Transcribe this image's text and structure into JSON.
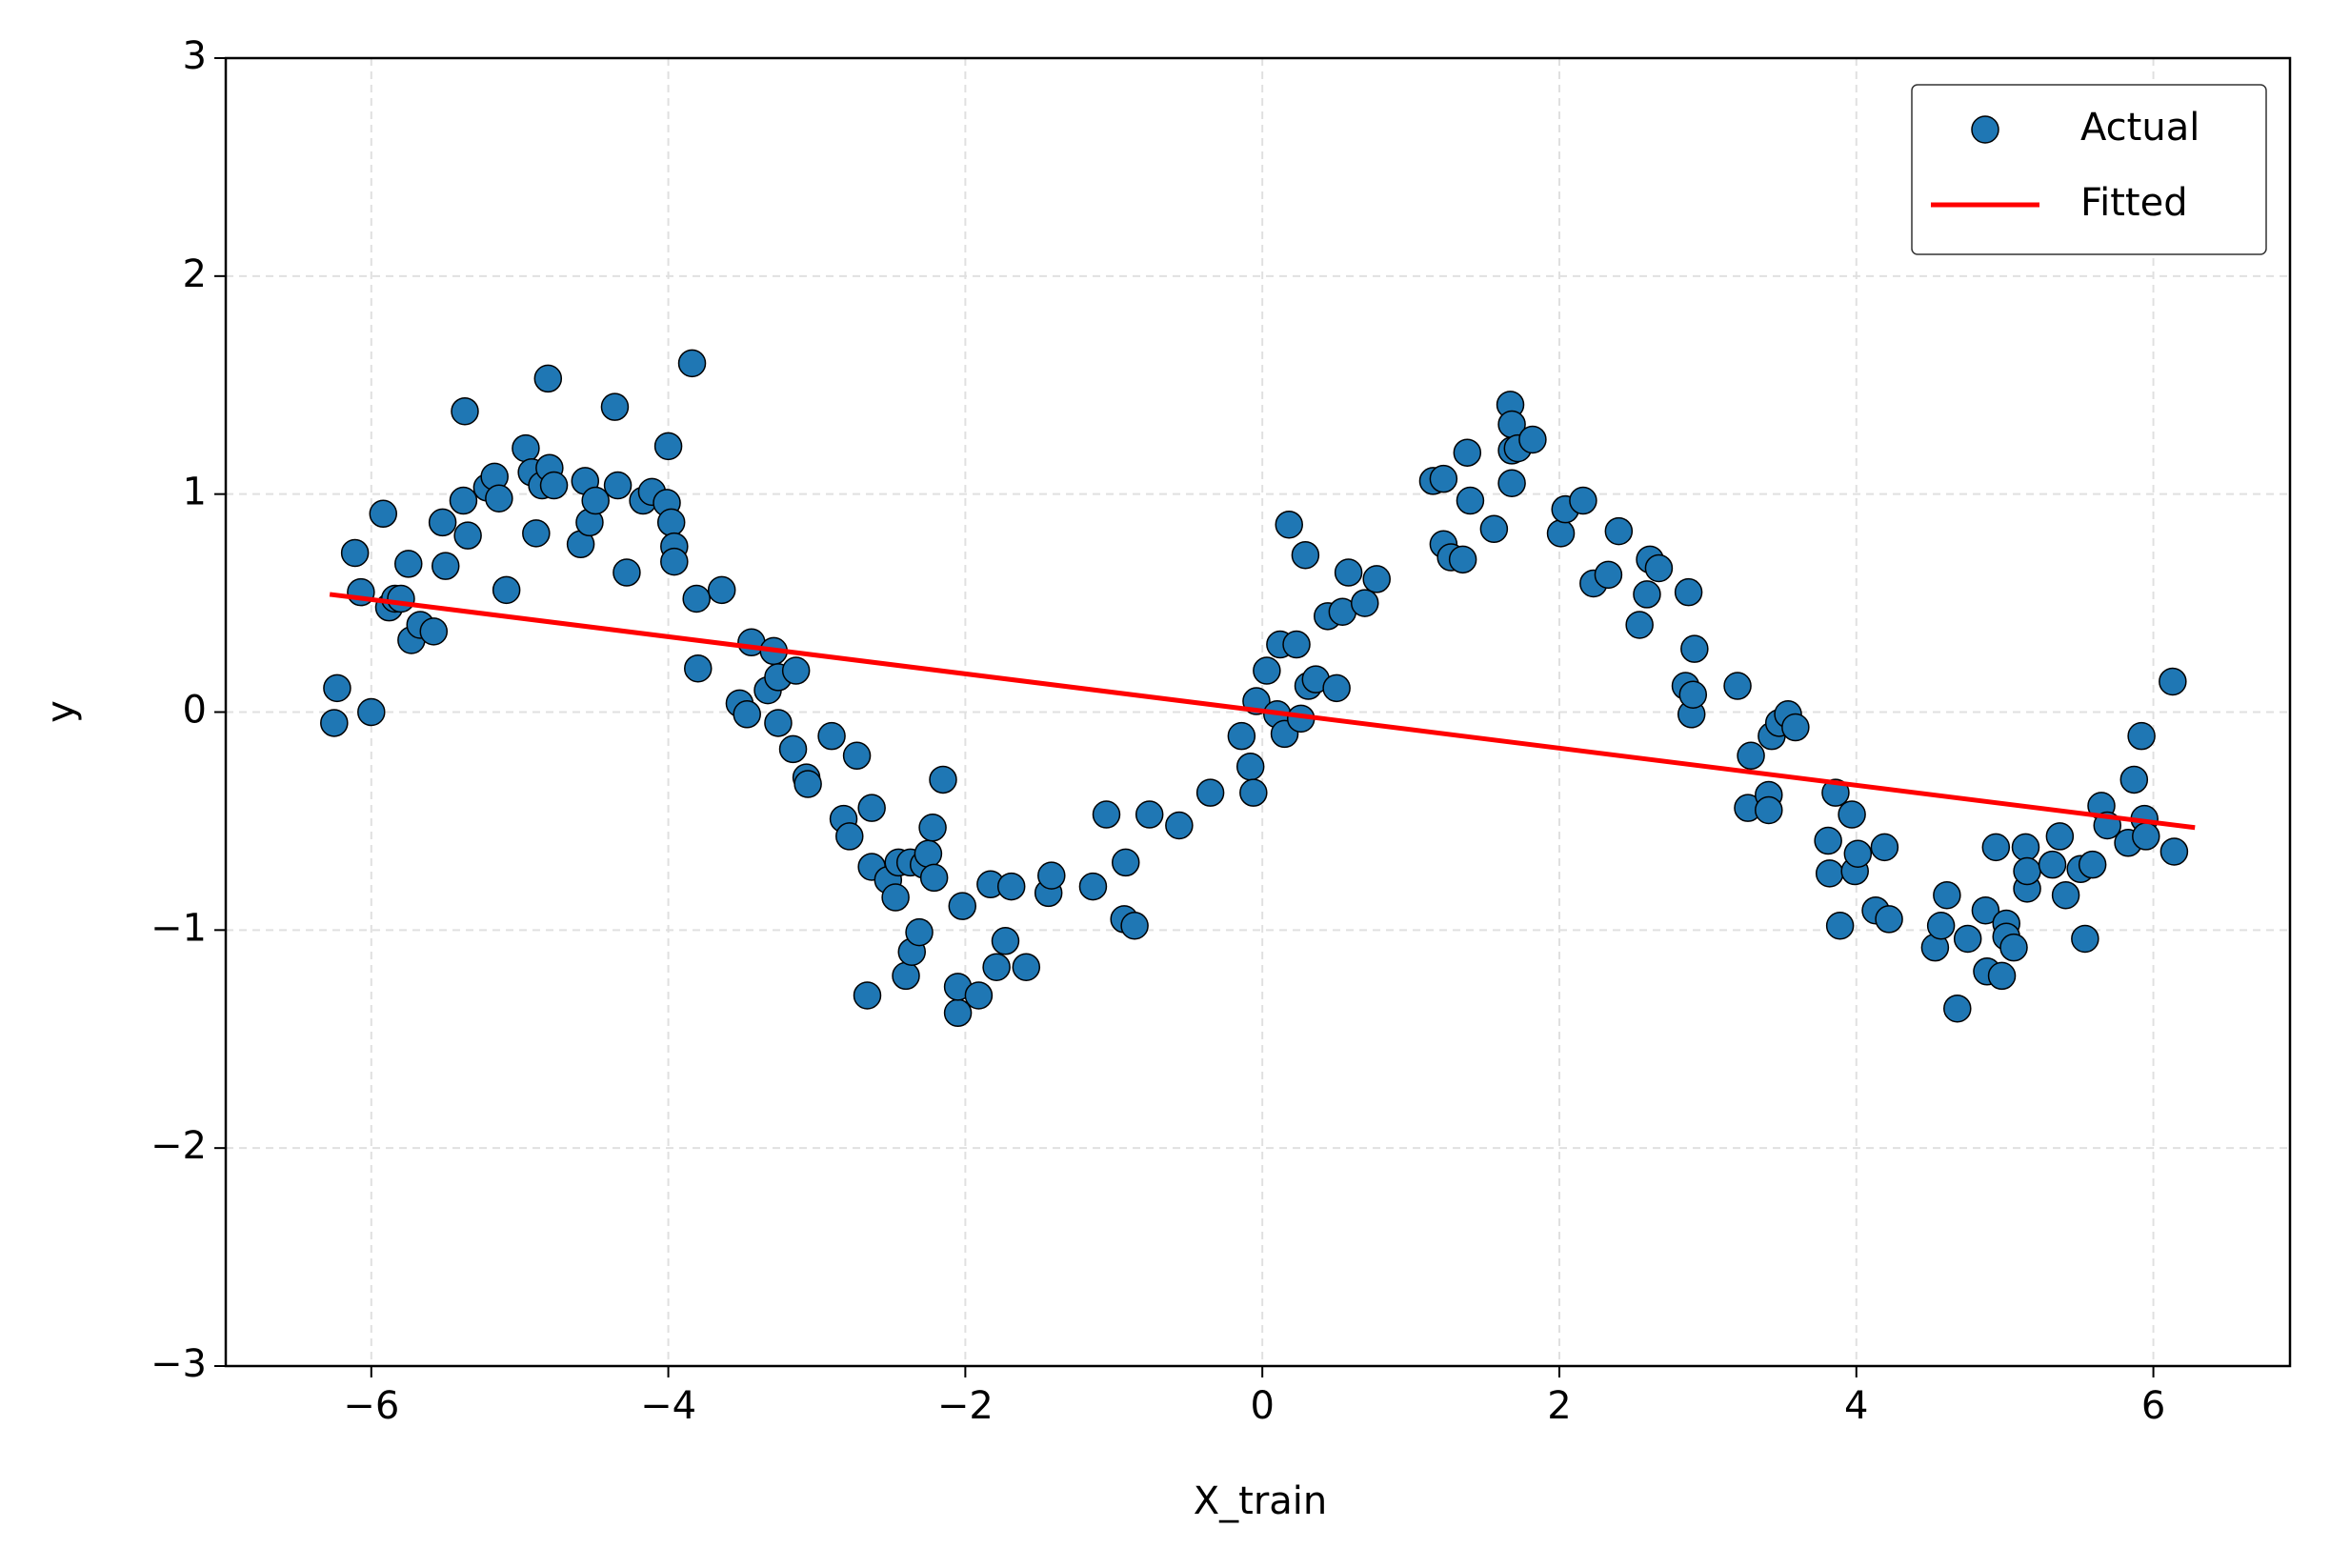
{
  "chart_data": {
    "type": "scatter",
    "xlabel": "X_train",
    "ylabel": "y",
    "xlim": [
      -6.98,
      6.92
    ],
    "ylim": [
      -3,
      3
    ],
    "xticks": [
      {
        "value": -6,
        "label": "−6"
      },
      {
        "value": -4,
        "label": "−4"
      },
      {
        "value": -2,
        "label": "−2"
      },
      0,
      2,
      4,
      6
    ],
    "yticks": [
      {
        "value": -3,
        "label": "−3"
      },
      {
        "value": -2,
        "label": "−2"
      },
      {
        "value": -1,
        "label": "−1"
      },
      0,
      1,
      2,
      3
    ],
    "grid": true,
    "legend": "upper right",
    "series": [
      {
        "name": "Actual",
        "kind": "scatter",
        "color": "#1f77b4",
        "x": [
          -6.25,
          -6.23,
          -6.11,
          -6.07,
          -6.0,
          -5.92,
          -5.88,
          -5.84,
          -5.8,
          -5.75,
          -5.73,
          -5.67,
          -5.58,
          -5.52,
          -5.5,
          -5.37,
          -5.38,
          -5.35,
          -5.22,
          -5.17,
          -5.14,
          -5.09,
          -4.96,
          -4.92,
          -4.89,
          -4.85,
          -4.81,
          -4.8,
          -4.77,
          -4.59,
          -4.56,
          -4.53,
          -4.49,
          -4.36,
          -4.34,
          -4.28,
          -4.17,
          -4.11,
          -4.0,
          -4.01,
          -3.98,
          -3.96,
          -3.96,
          -3.84,
          -3.81,
          -3.8,
          -3.64,
          -3.52,
          -3.47,
          -3.44,
          -3.33,
          -3.29,
          -3.26,
          -3.26,
          -3.16,
          -3.14,
          -3.07,
          -3.06,
          -2.9,
          -2.82,
          -2.78,
          -2.73,
          -2.66,
          -2.63,
          -2.63,
          -2.52,
          -2.47,
          -2.45,
          -2.4,
          -2.37,
          -2.36,
          -2.31,
          -2.28,
          -2.25,
          -2.22,
          -2.21,
          -2.15,
          -2.05,
          -2.05,
          -2.02,
          -1.91,
          -1.83,
          -1.79,
          -1.73,
          -1.69,
          -1.59,
          -1.44,
          -1.42,
          -1.14,
          -1.05,
          -0.92,
          -0.93,
          -0.86,
          -0.76,
          -0.56,
          -0.35,
          -0.14,
          -0.08,
          -0.06,
          -0.04,
          0.03,
          0.1,
          0.12,
          0.15,
          0.18,
          0.23,
          0.26,
          0.29,
          0.31,
          0.36,
          0.44,
          0.5,
          0.54,
          0.58,
          0.69,
          0.77,
          1.15,
          1.22,
          1.22,
          1.27,
          1.35,
          1.38,
          1.4,
          1.56,
          1.67,
          1.68,
          1.68,
          1.68,
          1.72,
          1.82,
          2.01,
          2.04,
          2.16,
          2.23,
          2.33,
          2.4,
          2.54,
          2.59,
          2.61,
          2.67,
          2.85,
          2.87,
          2.89,
          2.9,
          2.91,
          3.2,
          3.27,
          3.29,
          3.41,
          3.41,
          3.43,
          3.48,
          3.54,
          3.59,
          3.81,
          3.82,
          3.86,
          3.89,
          3.97,
          3.99,
          4.01,
          4.13,
          4.19,
          4.22,
          4.53,
          4.57,
          4.61,
          4.68,
          4.75,
          4.87,
          4.88,
          4.94,
          4.98,
          5.01,
          5.01,
          5.06,
          5.14,
          5.15,
          5.15,
          5.32,
          5.37,
          5.41,
          5.51,
          5.54,
          5.59,
          5.65,
          5.69,
          5.83,
          5.87,
          5.92,
          5.94,
          5.95,
          6.13,
          6.14
        ],
        "values": [
          -0.05,
          0.11,
          0.73,
          0.55,
          0.0,
          0.91,
          0.48,
          0.52,
          0.52,
          0.68,
          0.33,
          0.4,
          0.37,
          0.87,
          0.67,
          1.38,
          0.97,
          0.81,
          1.03,
          1.08,
          0.98,
          0.56,
          1.21,
          1.1,
          0.82,
          1.04,
          1.53,
          1.12,
          1.04,
          0.77,
          1.06,
          0.87,
          0.97,
          1.4,
          1.04,
          0.64,
          0.97,
          1.01,
          1.22,
          0.96,
          0.87,
          0.76,
          0.69,
          1.6,
          0.52,
          0.2,
          0.56,
          0.04,
          -0.01,
          0.32,
          0.1,
          0.28,
          0.16,
          -0.05,
          -0.17,
          0.19,
          -0.3,
          -0.33,
          -0.11,
          -0.49,
          -0.57,
          -0.2,
          -1.3,
          -0.44,
          -0.71,
          -0.77,
          -0.85,
          -0.69,
          -1.21,
          -0.69,
          -1.1,
          -1.01,
          -0.7,
          -0.65,
          -0.53,
          -0.76,
          -0.31,
          -1.38,
          -1.26,
          -0.89,
          -1.3,
          -0.79,
          -1.17,
          -1.05,
          -0.8,
          -1.17,
          -0.83,
          -0.75,
          -0.8,
          -0.47,
          -0.69,
          -0.95,
          -0.98,
          -0.47,
          -0.52,
          -0.37,
          -0.11,
          -0.25,
          -0.37,
          0.05,
          0.19,
          -0.01,
          0.31,
          -0.1,
          0.86,
          0.31,
          -0.03,
          0.72,
          0.12,
          0.15,
          0.44,
          0.11,
          0.46,
          0.64,
          0.5,
          0.61,
          1.06,
          1.07,
          0.77,
          0.71,
          0.7,
          1.19,
          0.97,
          0.84,
          1.41,
          1.32,
          1.05,
          1.2,
          1.21,
          1.25,
          0.82,
          0.93,
          0.97,
          0.59,
          0.63,
          0.83,
          0.4,
          0.54,
          0.7,
          0.66,
          0.12,
          0.55,
          -0.01,
          0.08,
          0.29,
          0.12,
          -0.44,
          -0.2,
          -0.38,
          -0.45,
          -0.11,
          -0.05,
          -0.01,
          -0.07,
          -0.59,
          -0.74,
          -0.37,
          -0.98,
          -0.47,
          -0.73,
          -0.65,
          -0.91,
          -0.62,
          -0.95,
          -1.08,
          -0.98,
          -0.84,
          -1.36,
          -1.04,
          -0.91,
          -1.19,
          -0.62,
          -1.21,
          -0.97,
          -1.03,
          -1.08,
          -0.62,
          -0.81,
          -0.73,
          -0.7,
          -0.57,
          -0.84,
          -0.72,
          -1.04,
          -0.7,
          -0.43,
          -0.52,
          -0.6,
          -0.31,
          -0.11,
          -0.49,
          -0.57,
          0.14,
          -0.64
        ]
      },
      {
        "name": "Fitted",
        "kind": "line",
        "color": "#ff0000",
        "x": [
          -6.28,
          6.28
        ],
        "values": [
          0.54,
          -0.53
        ]
      }
    ]
  }
}
